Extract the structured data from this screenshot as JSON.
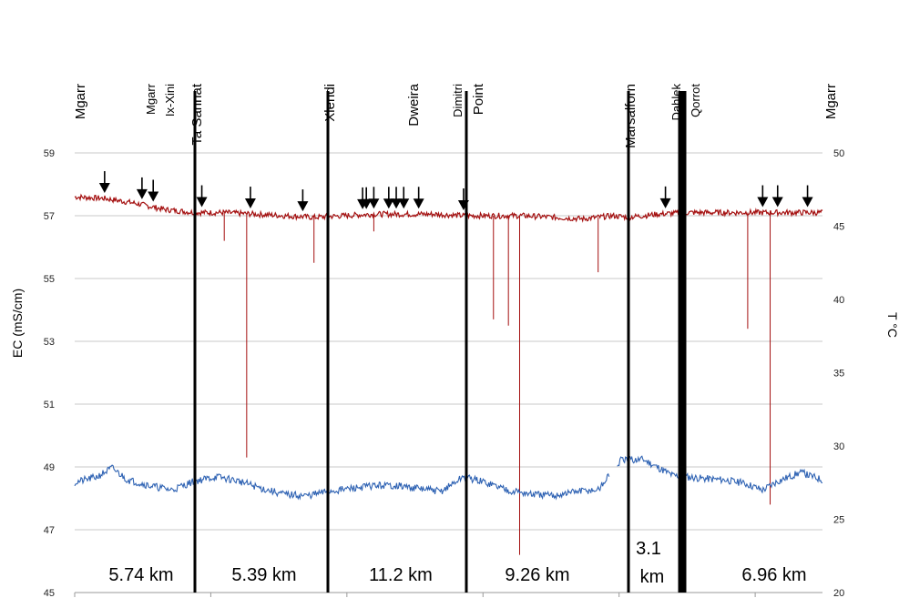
{
  "chart_data": {
    "type": "line",
    "title": "",
    "left_axis": {
      "label": "EC (mS/cm)",
      "range": [
        45,
        59
      ],
      "ticks": [
        45,
        47,
        49,
        51,
        53,
        55,
        57,
        59
      ]
    },
    "right_axis": {
      "label": "T °C",
      "range": [
        20,
        50
      ],
      "ticks": [
        20,
        25,
        30,
        35,
        40,
        45,
        50
      ]
    },
    "grid": true,
    "locations": [
      {
        "label": "Mgarr",
        "style": "big"
      },
      {
        "label": "Mgarr",
        "style": "small"
      },
      {
        "label": "Ix-Xini",
        "style": "small"
      },
      {
        "label": "Ta Sannat",
        "style": "big"
      },
      {
        "label": "Xlendi",
        "style": "big"
      },
      {
        "label": "Dweira",
        "style": "big"
      },
      {
        "label": "Dimitri",
        "style": "small"
      },
      {
        "label": "Point",
        "style": "big"
      },
      {
        "label": "Marsalforn",
        "style": "big"
      },
      {
        "label": "Dahlek",
        "style": "small"
      },
      {
        "label": "Qorrot",
        "style": "small"
      },
      {
        "label": "Mgarr",
        "style": "big"
      }
    ],
    "segments": [
      {
        "distance": "5.74 km"
      },
      {
        "distance": "5.39 km"
      },
      {
        "distance": "11.2 km"
      },
      {
        "distance": "9.26 km"
      },
      {
        "distance": "3.1",
        "unit": "km"
      },
      {
        "distance": "6.96 km"
      }
    ],
    "series": [
      {
        "color": "#a40f0f",
        "axis": "left",
        "points": [
          [
            0,
            57.6
          ],
          [
            4,
            57.55
          ],
          [
            8,
            57.4
          ],
          [
            12,
            57.2
          ],
          [
            16,
            57.1
          ],
          [
            20,
            57.1
          ],
          [
            24,
            57.05
          ],
          [
            28,
            57.0
          ],
          [
            32,
            56.95
          ],
          [
            36,
            57.0
          ],
          [
            40,
            57.05
          ],
          [
            44,
            57.05
          ],
          [
            48,
            57.05
          ],
          [
            52,
            57.0
          ],
          [
            56,
            57.0
          ],
          [
            60,
            57.0
          ],
          [
            64,
            56.95
          ],
          [
            68,
            56.9
          ],
          [
            72,
            57.0
          ],
          [
            74,
            56.95
          ],
          [
            78,
            57.05
          ],
          [
            82,
            57.1
          ],
          [
            86,
            57.1
          ],
          [
            90,
            57.1
          ],
          [
            94,
            57.1
          ],
          [
            100,
            57.1
          ]
        ],
        "spikes": [
          [
            20,
            56.2
          ],
          [
            23,
            49.3
          ],
          [
            32,
            55.5
          ],
          [
            40,
            56.5
          ],
          [
            56,
            53.7
          ],
          [
            58,
            53.5
          ],
          [
            59.5,
            46.2
          ],
          [
            70,
            55.2
          ],
          [
            90,
            53.4
          ],
          [
            93,
            47.8
          ]
        ]
      },
      {
        "color": "#2e62b3",
        "axis": "right",
        "points": [
          [
            0,
            27.5
          ],
          [
            3,
            27.9
          ],
          [
            5,
            28.5
          ],
          [
            7,
            27.7
          ],
          [
            10,
            27.3
          ],
          [
            13,
            27.0
          ],
          [
            16,
            27.6
          ],
          [
            19,
            27.9
          ],
          [
            22,
            27.6
          ],
          [
            25,
            27.1
          ],
          [
            28,
            26.7
          ],
          [
            31,
            26.6
          ],
          [
            34,
            26.9
          ],
          [
            37,
            27.1
          ],
          [
            40,
            27.3
          ],
          [
            43,
            27.3
          ],
          [
            46,
            27.1
          ],
          [
            49,
            26.9
          ],
          [
            52,
            27.9
          ],
          [
            55,
            27.5
          ],
          [
            58,
            27.0
          ],
          [
            61,
            26.7
          ],
          [
            64,
            26.6
          ],
          [
            67,
            26.9
          ],
          [
            70,
            27.0
          ],
          [
            73,
            29.0
          ],
          [
            76,
            29.1
          ],
          [
            80,
            28.0
          ],
          [
            84,
            27.8
          ],
          [
            87,
            27.7
          ],
          [
            90,
            27.4
          ],
          [
            92,
            27.0
          ],
          [
            94,
            27.6
          ],
          [
            97,
            28.2
          ],
          [
            100,
            27.7
          ]
        ],
        "gap": [
          71.5,
          72.5
        ]
      }
    ],
    "markers": [
      4,
      9,
      10.5,
      17,
      23.5,
      30.5,
      38.5,
      39,
      40,
      42,
      43,
      44,
      46,
      52,
      79,
      92,
      94,
      98
    ]
  }
}
